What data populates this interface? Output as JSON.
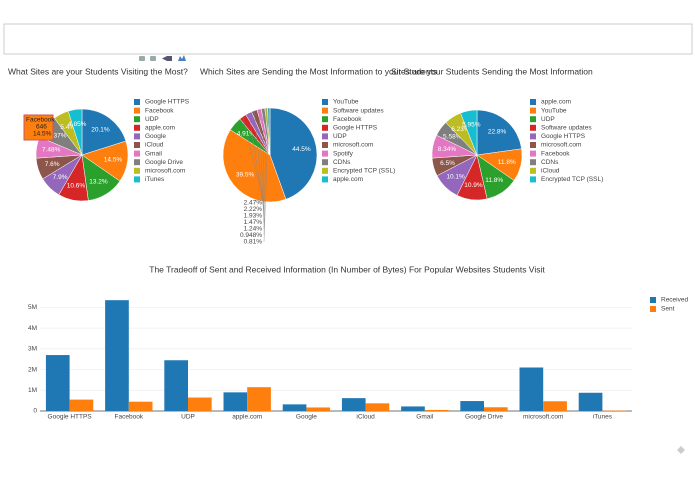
{
  "chart_data": [
    {
      "type": "pie",
      "title": "What Sites are your Students Visiting the Most?",
      "categories": [
        "Google HTTPS",
        "Facebook",
        "UDP",
        "apple.com",
        "Google",
        "iCloud",
        "Gmail",
        "Google Drive",
        "microsoft.com",
        "iTunes"
      ],
      "values": [
        20.1,
        14.5,
        13.2,
        10.6,
        7.9,
        7.6,
        7.48,
        8.37,
        5.4,
        4.85
      ],
      "value_labels": [
        "20.1%",
        "14.5%",
        "13.2%",
        "10.6%",
        "7.9%",
        "7.6%",
        "7.48%",
        "8.37%",
        "5.4%",
        "4.85%"
      ],
      "colors": [
        "#1f77b4",
        "#ff7f0e",
        "#2ca02c",
        "#d62728",
        "#9467bd",
        "#8c564b",
        "#e377c2",
        "#7f7f7f",
        "#bcbd22",
        "#17becf"
      ],
      "hover": {
        "label": "Facebook",
        "value": 646,
        "percent": "14.5%"
      }
    },
    {
      "type": "pie",
      "title": "Which Sites are Sending the Most Information to your Students",
      "categories": [
        "YouTube",
        "Software updates",
        "Facebook",
        "Google HTTPS",
        "UDP",
        "microsoft.com",
        "Spotify",
        "CDNs",
        "Encrypted TCP (SSL)",
        "apple.com"
      ],
      "values": [
        44.5,
        39.5,
        4.91,
        2.47,
        2.22,
        1.93,
        1.47,
        1.24,
        0.948,
        0.81
      ],
      "value_labels": [
        "44.5%",
        "39.5%",
        "4.91%",
        "2.47%",
        "2.22%",
        "1.93%",
        "1.47%",
        "1.24%",
        "0.948%",
        "0.81%"
      ],
      "colors": [
        "#1f77b4",
        "#ff7f0e",
        "#2ca02c",
        "#d62728",
        "#9467bd",
        "#8c564b",
        "#e377c2",
        "#7f7f7f",
        "#bcbd22",
        "#17becf"
      ]
    },
    {
      "type": "pie",
      "title": "Sites are your Students Sending the Most Information",
      "categories": [
        "apple.com",
        "YouTube",
        "UDP",
        "Software updates",
        "Google HTTPS",
        "microsoft.com",
        "Facebook",
        "CDNs",
        "iCloud",
        "Encrypted TCP (SSL)"
      ],
      "values": [
        22.8,
        11.8,
        11.8,
        10.9,
        10.1,
        6.5,
        8.34,
        5.58,
        6.23,
        5.95
      ],
      "value_labels": [
        "22.8%",
        "11.8%",
        "11.8%",
        "10.9%",
        "10.1%",
        "6.5%",
        "8.34%",
        "5.58%",
        "6.23%",
        "5.95%"
      ],
      "colors": [
        "#1f77b4",
        "#ff7f0e",
        "#2ca02c",
        "#d62728",
        "#9467bd",
        "#8c564b",
        "#e377c2",
        "#7f7f7f",
        "#bcbd22",
        "#17becf"
      ]
    },
    {
      "type": "bar",
      "title": "The Tradeoff of Sent and Received Information (In Number of Bytes) For Popular Websites Students Visit",
      "categories": [
        "Google HTTPS",
        "Facebook",
        "UDP",
        "apple.com",
        "Google",
        "iCloud",
        "Gmail",
        "Google Drive",
        "microsoft.com",
        "iTunes"
      ],
      "series": [
        {
          "name": "Received",
          "color": "#1f77b4",
          "values": [
            2700000,
            5350000,
            2450000,
            900000,
            320000,
            620000,
            220000,
            480000,
            2100000,
            880000
          ]
        },
        {
          "name": "Sent",
          "color": "#ff7f0e",
          "values": [
            550000,
            450000,
            650000,
            1150000,
            170000,
            370000,
            50000,
            180000,
            470000,
            20000
          ]
        }
      ],
      "ylim": [
        0,
        5600000
      ],
      "yticks": [
        0,
        {
          "value": 1000000,
          "label": "1M"
        },
        {
          "value": 2000000,
          "label": "2M"
        },
        {
          "value": 3000000,
          "label": "3M"
        },
        {
          "value": 4000000,
          "label": "4M"
        },
        {
          "value": 5000000,
          "label": "5M"
        }
      ],
      "grid": true,
      "legend": "top-right"
    }
  ]
}
